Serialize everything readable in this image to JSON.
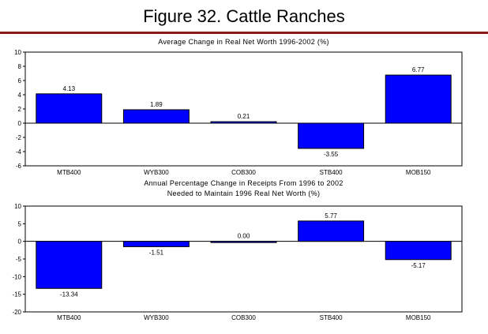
{
  "page": {
    "title": "Figure 32. Cattle Ranches",
    "rule_color": "#8b1a1a"
  },
  "chart_data": [
    {
      "type": "bar",
      "title": "Average Change in Real Net Worth 1996-2002 (%)",
      "categories": [
        "MTB400",
        "WYB300",
        "COB300",
        "STB400",
        "MOB150"
      ],
      "values": [
        4.13,
        1.89,
        0.21,
        -3.55,
        6.77
      ],
      "labels": [
        "4.13",
        "1.89",
        "0.21",
        "-3.55",
        "6.77"
      ],
      "ylim": [
        -6,
        10
      ],
      "yticks": [
        -6,
        -4,
        -2,
        0,
        2,
        4,
        6,
        8,
        10
      ],
      "bar_color": "#0000ff",
      "grid": false,
      "legend": "none"
    },
    {
      "type": "bar",
      "title_lines": [
        "Annual Percentage Change in Receipts From 1996 to 2002",
        "Needed to Maintain 1996 Real Net Worth (%)"
      ],
      "categories": [
        "MTB400",
        "WYB300",
        "COB300",
        "STB400",
        "MOB150"
      ],
      "values": [
        -13.34,
        -1.51,
        0.0,
        5.77,
        -5.17
      ],
      "labels": [
        "-13.34",
        "-1.51",
        "0.00",
        "5.77",
        "-5.17"
      ],
      "ylim": [
        -20,
        10
      ],
      "yticks": [
        -20,
        -15,
        -10,
        -5,
        0,
        5,
        10
      ],
      "bar_color": "#0000ff",
      "grid": false,
      "legend": "none"
    }
  ]
}
